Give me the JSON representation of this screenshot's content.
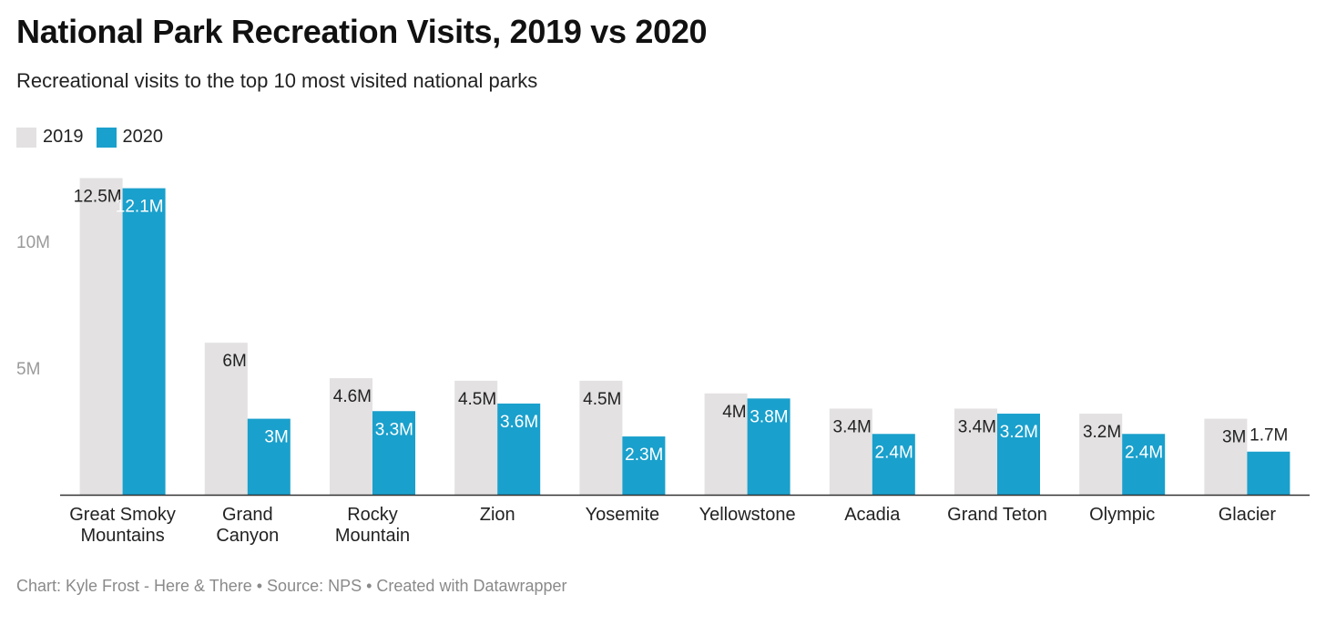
{
  "colors": {
    "series_2019": "#e3e1e1",
    "series_2020": "#1aa0cc",
    "axis": "#333333",
    "label_dark": "#222222",
    "label_light": "#ffffff",
    "tick": "#9a9a9a"
  },
  "legend": {
    "items": [
      {
        "label": "2019"
      },
      {
        "label": "2020"
      }
    ]
  },
  "footer": {
    "text": "Chart: Kyle Frost - Here & There • Source: NPS • Created with Datawrapper"
  },
  "chart_data": {
    "type": "bar",
    "title": "National Park Recreation Visits, 2019 vs 2020",
    "subtitle": "Recreational visits to the top 10 most visited national parks",
    "categories": [
      [
        "Great Smoky",
        "Mountains"
      ],
      [
        "Grand",
        "Canyon"
      ],
      [
        "Rocky",
        "Mountain"
      ],
      [
        "Zion"
      ],
      [
        "Yosemite"
      ],
      [
        "Yellowstone"
      ],
      [
        "Acadia"
      ],
      [
        "Grand Teton"
      ],
      [
        "Olympic"
      ],
      [
        "Glacier"
      ]
    ],
    "series": [
      {
        "name": "2019",
        "values": [
          12.5,
          6.0,
          4.6,
          4.5,
          4.5,
          4.0,
          3.4,
          3.4,
          3.2,
          3.0
        ],
        "labels": [
          "12.5M",
          "6M",
          "4.6M",
          "4.5M",
          "4.5M",
          "4M",
          "3.4M",
          "3.4M",
          "3.2M",
          "3M"
        ]
      },
      {
        "name": "2020",
        "values": [
          12.1,
          3.0,
          3.3,
          3.6,
          2.3,
          3.8,
          2.4,
          3.2,
          2.4,
          1.7
        ],
        "labels": [
          "12.1M",
          "3M",
          "3.3M",
          "3.6M",
          "2.3M",
          "3.8M",
          "2.4M",
          "3.2M",
          "2.4M",
          "1.7M"
        ]
      }
    ],
    "y_ticks": [
      {
        "value": 5,
        "label": "5M"
      },
      {
        "value": 10,
        "label": "10M"
      }
    ],
    "ylim": [
      0,
      12.5
    ],
    "grid": false,
    "legend_position": "top-left"
  }
}
